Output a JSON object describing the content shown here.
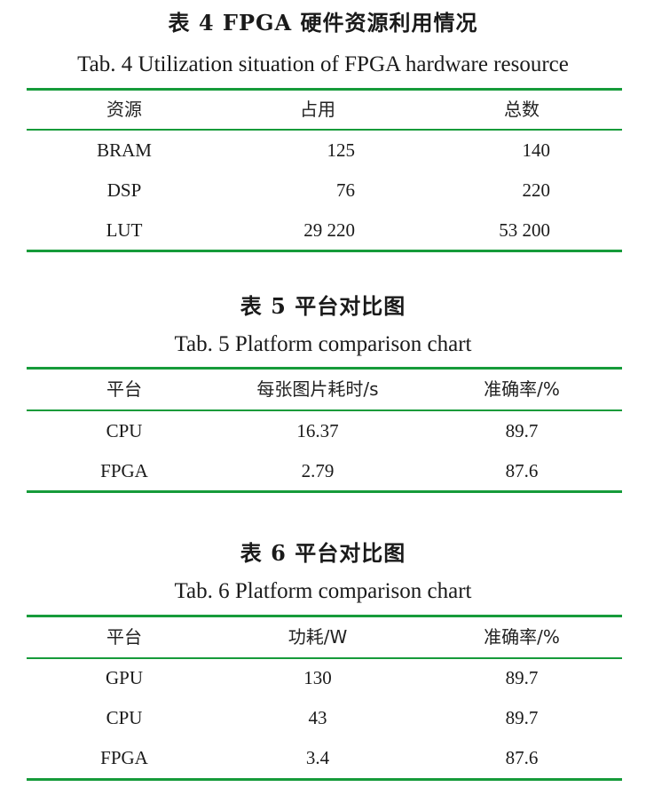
{
  "table4": {
    "title_zh": "表 4   FPGA 硬件资源利用情况",
    "title_en": "Tab. 4    Utilization situation of FPGA hardware resource",
    "headers": [
      "资源",
      "占用",
      "总数"
    ],
    "rows": [
      [
        "BRAM",
        "125",
        "140"
      ],
      [
        "DSP",
        "76",
        "220"
      ],
      [
        "LUT",
        "29 220",
        "53 200"
      ]
    ]
  },
  "table5": {
    "title_zh": "表 5   平台对比图",
    "title_en": "Tab. 5    Platform comparison chart",
    "headers": [
      "平台",
      "每张图片耗时/s",
      "准确率/%"
    ],
    "rows": [
      [
        "CPU",
        "16.37",
        "89.7"
      ],
      [
        "FPGA",
        "2.79",
        "87.6"
      ]
    ]
  },
  "table6": {
    "title_zh": "表 6   平台对比图",
    "title_en": "Tab. 6    Platform comparison chart",
    "headers": [
      "平台",
      "功耗/W",
      "准确率/%"
    ],
    "rows": [
      [
        "GPU",
        "130",
        "89.7"
      ],
      [
        "CPU",
        "43",
        "89.7"
      ],
      [
        "FPGA",
        "3.4",
        "87.6"
      ]
    ]
  },
  "colors": {
    "rule": "#169b3a",
    "text": "#1a1a1a"
  }
}
